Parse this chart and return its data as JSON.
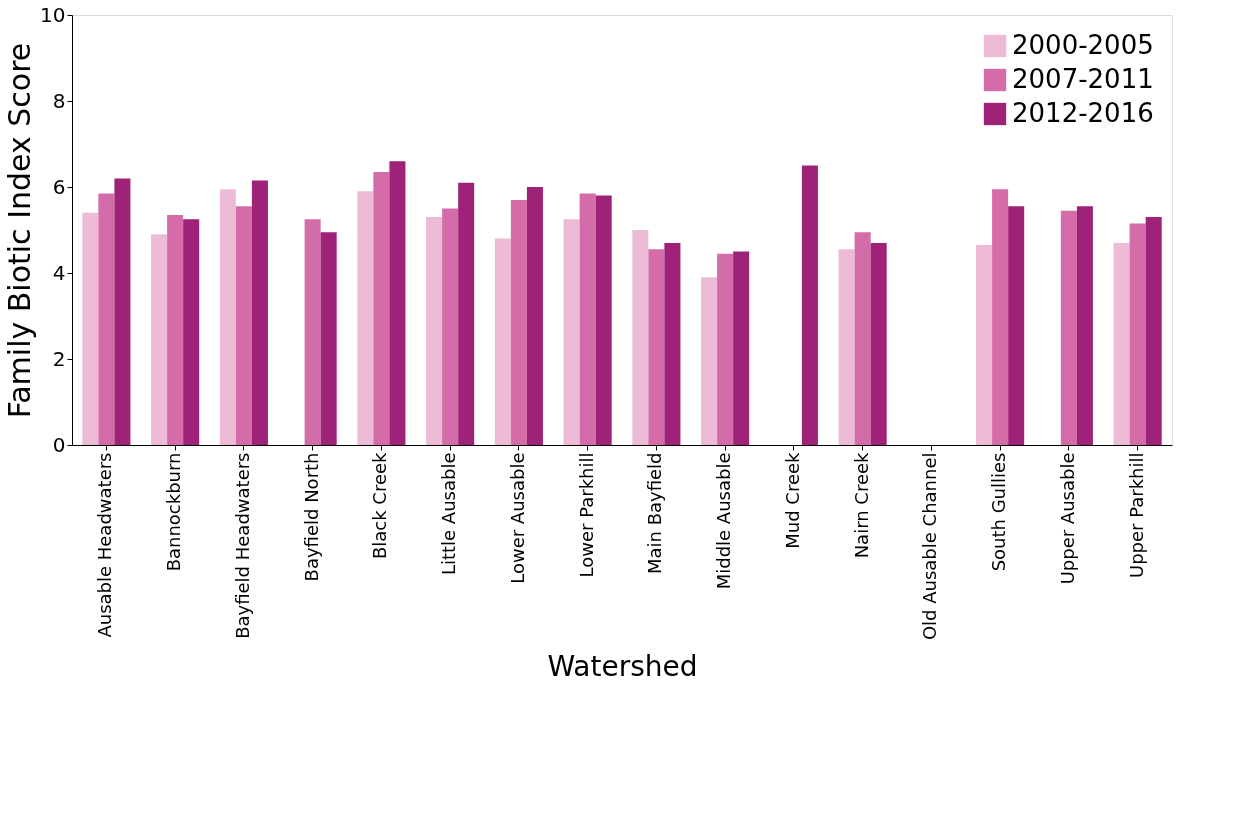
{
  "chart_data": {
    "type": "bar",
    "xlabel": "Watershed",
    "ylabel": "Family Biotic Index Score",
    "categories": [
      "Ausable Headwaters",
      "Bannockburn",
      "Bayfield Headwaters",
      "Bayfield North",
      "Black Creek",
      "Little Ausable",
      "Lower Ausable",
      "Lower Parkhill",
      "Main Bayfield",
      "Middle Ausable",
      "Mud Creek",
      "Nairn Creek",
      "Old Ausable Channel",
      "South Gullies",
      "Upper Ausable",
      "Upper Parkhill"
    ],
    "series": [
      {
        "name": "2000-2005",
        "color": "#eebbd6",
        "values": [
          5.4,
          4.9,
          5.95,
          null,
          5.9,
          5.3,
          4.8,
          5.25,
          5.0,
          3.9,
          null,
          4.55,
          null,
          4.65,
          null,
          4.7
        ]
      },
      {
        "name": "2007-2011",
        "color": "#d46ca9",
        "values": [
          5.85,
          5.35,
          5.55,
          5.25,
          6.35,
          5.5,
          5.7,
          5.85,
          4.55,
          4.45,
          null,
          4.95,
          null,
          5.95,
          5.45,
          5.15
        ]
      },
      {
        "name": "2012-2016",
        "color": "#9e2278",
        "values": [
          6.2,
          5.25,
          6.15,
          4.95,
          6.6,
          6.1,
          6.0,
          5.8,
          4.7,
          4.5,
          6.5,
          4.7,
          null,
          5.55,
          5.55,
          5.3
        ]
      }
    ],
    "ylim": [
      0,
      10
    ],
    "yticks": [
      0,
      2,
      4,
      6,
      8,
      10
    ],
    "grid": false,
    "legend": "top right"
  }
}
